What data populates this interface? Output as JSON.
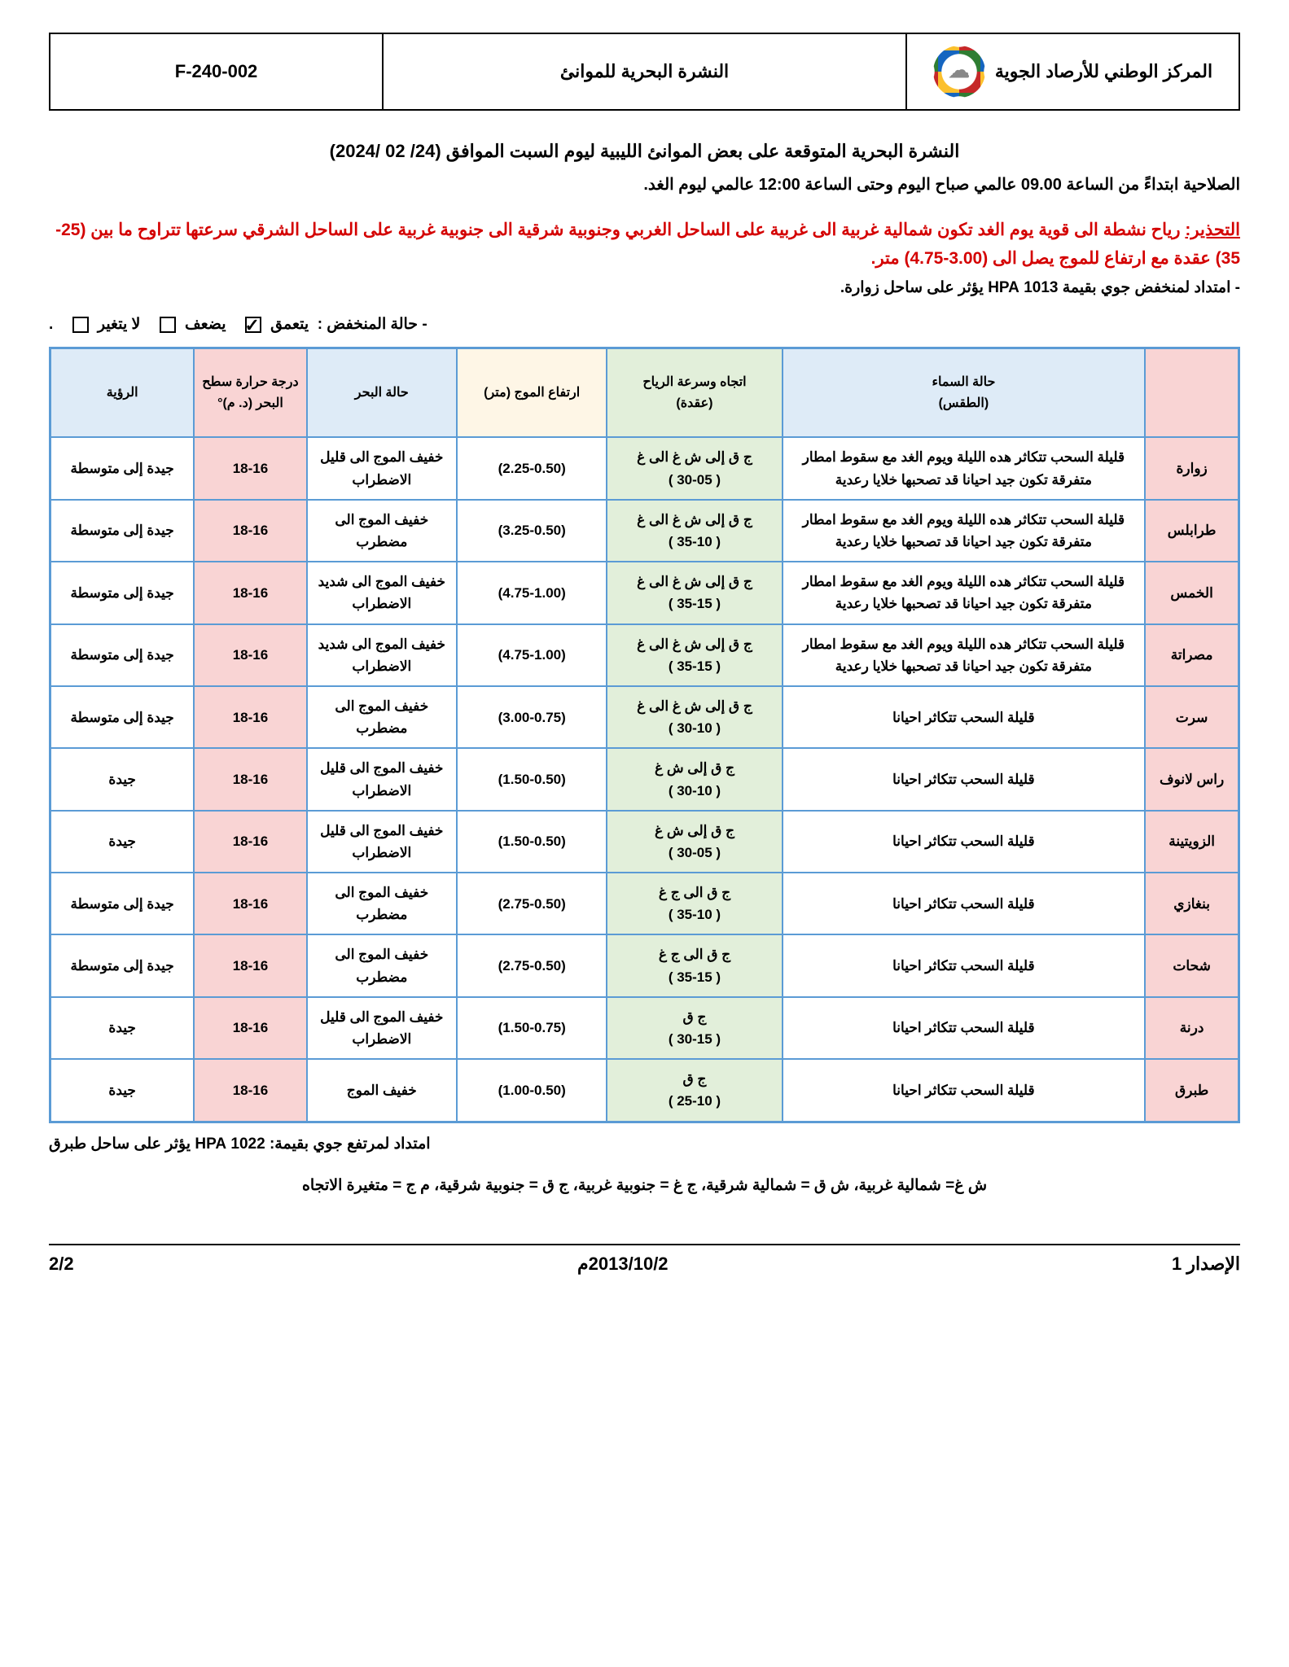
{
  "header": {
    "org": "المركز الوطني للأرصاد الجوية",
    "doc_title": "النشرة البحرية للموانئ",
    "code": "F-240-002"
  },
  "bulletin_title": "النشرة البحرية المتوقعة على بعض الموانئ الليبية ليوم السبت الموافق (24/ 02 /2024)",
  "validity": "الصلاحية ابتداءً من الساعة 09.00 عالمي صباح اليوم وحتى الساعة 12:00 عالمي ليوم الغد.",
  "warning_label": "التحذير:",
  "warning_text": "رياح نشطة الى قوية  يوم الغد تكون شمالية غربية الى غربية على الساحل الغربي وجنوبية شرقية الى جنوبية غربية على الساحل الشرقي سرعتها تتراوح ما بين (25-35) عقدة مع ارتفاع للموج يصل الى (3.00-4.75) متر.",
  "pressure_line": "- امتداد لمنخفض جوي بقيمة 1013 HPA   يؤثر على   ساحل زوارة.",
  "depression": {
    "prefix": "- حالة المنخفض  :",
    "opt1": "يتعمق",
    "opt2": "يضعف",
    "opt3": "لا يتغير",
    "checked_index": 0
  },
  "columns": {
    "port": "",
    "sky": "حالة السماء\n(الطقس)",
    "wind": "اتجاه وسرعة الرياح\n(عقدة)",
    "wave": "ارتفاع الموج (متر)",
    "sea": "حالة البحر",
    "temp": "درجة حرارة سطح البحر (د. م)°",
    "vis": "الرؤية"
  },
  "rows": [
    {
      "port": "زوارة",
      "sky": "قليلة السحب تتكاثر هده الليلة ويوم الغد مع سقوط امطار متفرقة تكون جيد احيانا قد تصحبها خلايا رعدية",
      "wind": "ج ق إلى ش غ الى غ\n( 30-05 )",
      "wave": "(2.25-0.50)",
      "sea": "خفيف الموج الى قليل الاضطراب",
      "temp": "18-16",
      "vis": "جيدة إلى متوسطة"
    },
    {
      "port": "طرابلس",
      "sky": "قليلة السحب تتكاثر هده الليلة ويوم الغد مع سقوط امطار متفرقة تكون جيد احيانا قد تصحبها خلايا رعدية",
      "wind": "ج ق إلى ش غ الى غ\n( 35-10 )",
      "wave": "(3.25-0.50)",
      "sea": "خفيف الموج الى مضطرب",
      "temp": "18-16",
      "vis": "جيدة إلى متوسطة"
    },
    {
      "port": "الخمس",
      "sky": "قليلة السحب تتكاثر هده الليلة ويوم الغد مع سقوط امطار متفرقة تكون جيد احيانا قد تصحبها خلايا رعدية",
      "wind": "ج ق إلى ش غ الى غ\n( 35-15 )",
      "wave": "(4.75-1.00)",
      "sea": "خفيف الموج الى شديد الاضطراب",
      "temp": "18-16",
      "vis": "جيدة إلى متوسطة"
    },
    {
      "port": "مصراتة",
      "sky": "قليلة السحب تتكاثر هده الليلة ويوم الغد مع سقوط امطار متفرقة تكون جيد احيانا قد تصحبها خلايا رعدية",
      "wind": "ج ق إلى ش غ الى غ\n( 35-15 )",
      "wave": "(4.75-1.00)",
      "sea": "خفيف الموج الى شديد الاضطراب",
      "temp": "18-16",
      "vis": "جيدة إلى متوسطة"
    },
    {
      "port": "سرت",
      "sky": "قليلة السحب تتكاثر احيانا",
      "wind": "ج ق إلى ش غ الى غ\n( 30-10 )",
      "wave": "(3.00-0.75)",
      "sea": "خفيف الموج الى مضطرب",
      "temp": "18-16",
      "vis": "جيدة إلى متوسطة"
    },
    {
      "port": "راس لانوف",
      "sky": "قليلة السحب تتكاثر احيانا",
      "wind": "ج ق إلى ش غ\n( 30-10 )",
      "wave": "(1.50-0.50)",
      "sea": "خفيف الموج الى قليل الاضطراب",
      "temp": "18-16",
      "vis": "جيدة"
    },
    {
      "port": "الزويتينة",
      "sky": "قليلة السحب تتكاثر احيانا",
      "wind": "ج ق إلى ش غ\n( 30-05 )",
      "wave": "(1.50-0.50)",
      "sea": "خفيف الموج الى قليل الاضطراب",
      "temp": "18-16",
      "vis": "جيدة"
    },
    {
      "port": "بنغازي",
      "sky": "قليلة السحب تتكاثر احيانا",
      "wind": "ج ق الى ج غ\n( 35-10 )",
      "wave": "(2.75-0.50)",
      "sea": "خفيف الموج الى مضطرب",
      "temp": "18-16",
      "vis": "جيدة إلى متوسطة"
    },
    {
      "port": "شحات",
      "sky": "قليلة السحب تتكاثر احيانا",
      "wind": "ج ق الى ج غ\n( 35-15 )",
      "wave": "(2.75-0.50)",
      "sea": "خفيف الموج الى مضطرب",
      "temp": "18-16",
      "vis": "جيدة إلى متوسطة"
    },
    {
      "port": "درنة",
      "sky": "قليلة السحب تتكاثر احيانا",
      "wind": "ج ق\n( 30-15 )",
      "wave": "(1.50-0.75)",
      "sea": "خفيف الموج الى قليل الاضطراب",
      "temp": "18-16",
      "vis": "جيدة"
    },
    {
      "port": "طبرق",
      "sky": "قليلة السحب تتكاثر احيانا",
      "wind": "ج ق\n( 25-10 )",
      "wave": "(1.00-0.50)",
      "sea": "خفيف الموج",
      "temp": "18-16",
      "vis": "جيدة"
    }
  ],
  "high_pressure": "امتداد لمرتفع جوي بقيمة: 1022 HPA يؤثر على ساحل طبرق",
  "abbrev": "ش غ= شمالية غربية، ش ق = شمالية شرقية، ج غ = جنوبية غربية، ج ق = جنوبية شرقية، م ج = متغيرة الاتجاه",
  "footer": {
    "issue": "الإصدار 1",
    "date": "2013/10/2م",
    "page": "2/2"
  },
  "colors": {
    "border": "#5b9bd5",
    "pink": "#f9d4d4",
    "blue": "#deebf7",
    "green": "#e2efda",
    "cream": "#fef6e6",
    "warning": "#d40000"
  }
}
